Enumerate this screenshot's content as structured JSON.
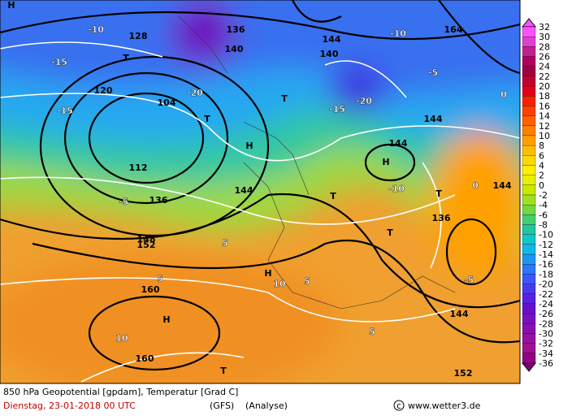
{
  "map": {
    "title": "850 hPa Geopotential [gpdam], Temperatur [Grad C]",
    "date": "Dienstag, 23-01-2018  00 UTC",
    "model": "(GFS)",
    "run": "(Analyse)",
    "credit": "www.wetter3.de",
    "labels": [
      "144",
      "144",
      "144",
      "144",
      "144",
      "144",
      "136",
      "128",
      "120",
      "112",
      "104",
      "136",
      "152",
      "160",
      "160",
      "152",
      "148",
      "-10",
      "-10",
      "-15",
      "-15",
      "-15",
      "-20",
      "-20",
      "-5",
      "-5",
      "-5",
      "-10",
      "5",
      "5",
      "5",
      "5",
      "10",
      "10",
      "0",
      "0",
      "T",
      "T",
      "T",
      "T",
      "T",
      "T",
      "T",
      "H",
      "H",
      "H",
      "H",
      "H",
      "136",
      "140",
      "140",
      "164"
    ],
    "colorbar": {
      "values": [
        32,
        30,
        28,
        26,
        24,
        22,
        20,
        18,
        16,
        14,
        12,
        10,
        8,
        6,
        4,
        2,
        0,
        -2,
        -4,
        -6,
        -8,
        -10,
        -12,
        -14,
        -16,
        -18,
        -20,
        -22,
        -24,
        -26,
        -28,
        -30,
        -32,
        -34,
        -36
      ],
      "colors": [
        "#ff50ff",
        "#e040d0",
        "#c02090",
        "#b00060",
        "#a00040",
        "#c00030",
        "#e00018",
        "#f82000",
        "#ff4000",
        "#ff6000",
        "#ff8000",
        "#ffa000",
        "#ffbf00",
        "#ffd800",
        "#ffee00",
        "#e8f000",
        "#c8e800",
        "#a0e020",
        "#70d840",
        "#40d070",
        "#20c8a0",
        "#10c8c8",
        "#10b8e8",
        "#1898f0",
        "#2878f8",
        "#3858f8",
        "#4838f0",
        "#5820e0",
        "#6810d0",
        "#7810c0",
        "#8810b0",
        "#9810a0",
        "#a01090",
        "#900080",
        "#800070"
      ]
    }
  }
}
